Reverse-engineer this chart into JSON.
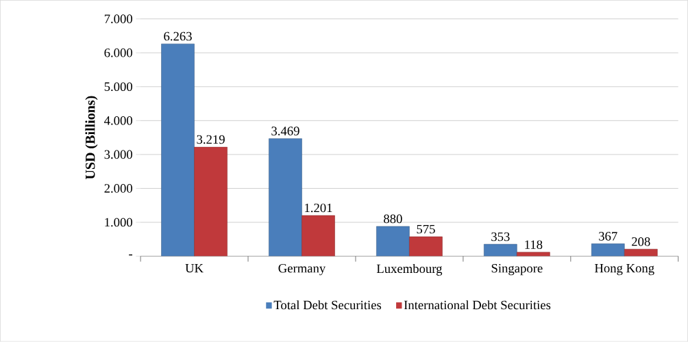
{
  "chart_data": {
    "type": "bar",
    "ylabel": "USD (Billions)",
    "categories": [
      "UK",
      "Germany",
      "Luxembourg",
      "Singapore",
      "Hong Kong"
    ],
    "series": [
      {
        "name": "Total Debt Securities",
        "color": "#4a7ebb",
        "values": [
          6263,
          3469,
          880,
          353,
          367
        ],
        "value_labels": [
          "6.263",
          "3.469",
          "880",
          "353",
          "367"
        ]
      },
      {
        "name": "International Debt Securities",
        "color": "#c0393b",
        "values": [
          3219,
          1201,
          575,
          118,
          208
        ],
        "value_labels": [
          "3.219",
          "1.201",
          "575",
          "118",
          "208"
        ]
      }
    ],
    "ylim": [
      0,
      7000
    ],
    "yticks": [
      {
        "value": 0,
        "label": "-"
      },
      {
        "value": 1000,
        "label": "1.000"
      },
      {
        "value": 2000,
        "label": "2.000"
      },
      {
        "value": 3000,
        "label": "3.000"
      },
      {
        "value": 4000,
        "label": "4.000"
      },
      {
        "value": 5000,
        "label": "5.000"
      },
      {
        "value": 6000,
        "label": "6.000"
      },
      {
        "value": 7000,
        "label": "7.000"
      }
    ],
    "grid": "y",
    "legend": "bottom"
  }
}
